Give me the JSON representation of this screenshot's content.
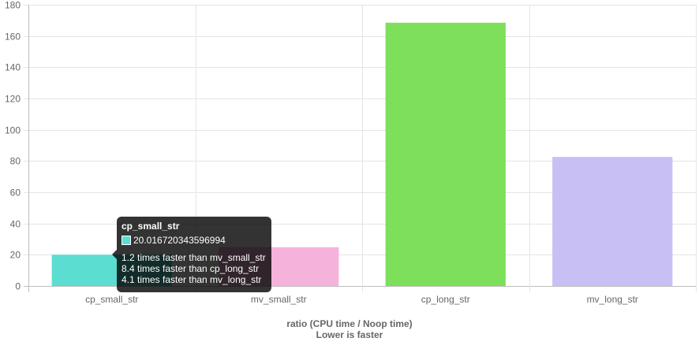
{
  "chart_data": {
    "type": "bar",
    "categories": [
      "cp_small_str",
      "mv_small_str",
      "cp_long_str",
      "mv_long_str"
    ],
    "values": [
      20.016720343596994,
      24.8,
      168.5,
      82.6
    ],
    "colors": [
      "#5cddd1",
      "#f5b3db",
      "#7edf5a",
      "#c8c0f5"
    ],
    "ylim": [
      0,
      180
    ],
    "yticks": [
      0,
      20,
      40,
      60,
      80,
      100,
      120,
      140,
      160,
      180
    ],
    "xlabel": "ratio (CPU time / Noop time)",
    "xlabel_sub": "Lower is faster",
    "grid": true
  },
  "tooltip": {
    "title": "cp_small_str",
    "value": "20.016720343596994",
    "swatch_color": "#5cddd1",
    "lines": [
      "1.2 times faster than mv_small_str",
      "8.4 times faster than cp_long_str",
      "4.1 times faster than mv_long_str"
    ]
  }
}
